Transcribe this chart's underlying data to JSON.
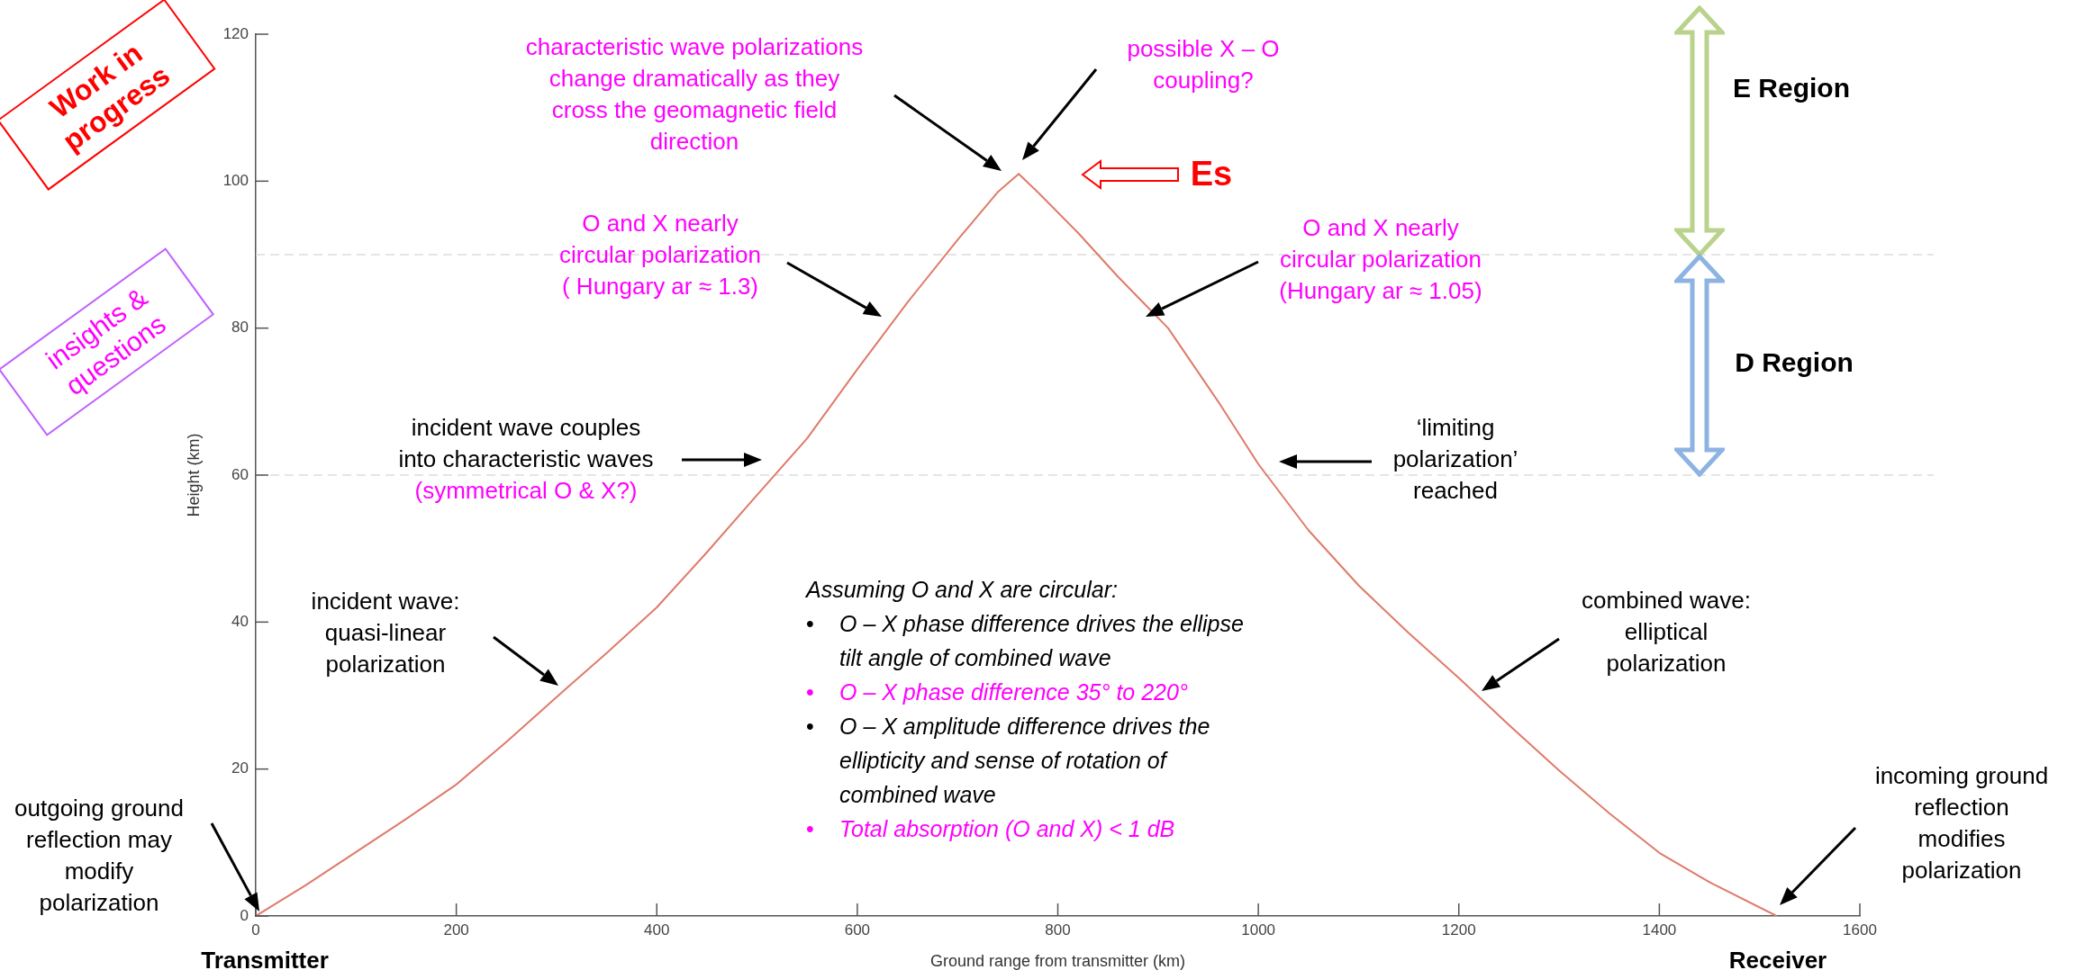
{
  "chart_data": {
    "type": "line",
    "xlabel": "Ground range from transmitter (km)",
    "ylabel": "Height (km)",
    "xlim": [
      0,
      1600
    ],
    "ylim": [
      0,
      120
    ],
    "xticks": [
      0,
      200,
      400,
      600,
      800,
      1000,
      1200,
      1400,
      1600
    ],
    "yticks": [
      0,
      20,
      40,
      60,
      80,
      100,
      120
    ],
    "marker": "none",
    "line_style": "solid",
    "x": [
      0,
      50,
      100,
      150,
      200,
      250,
      300,
      350,
      400,
      450,
      500,
      550,
      600,
      650,
      700,
      740,
      761,
      780,
      820,
      860,
      910,
      960,
      1000,
      1050,
      1100,
      1150,
      1200,
      1250,
      1300,
      1350,
      1400,
      1450,
      1517
    ],
    "series": [
      {
        "color": "#e07a6a",
        "values": [
          0,
          4.2,
          8.7,
          13.2,
          17.9,
          23.7,
          29.8,
          35.8,
          42,
          49.5,
          57.3,
          65,
          74.4,
          83.5,
          92,
          98.5,
          101,
          98.5,
          93,
          87,
          80,
          70,
          61.5,
          52.5,
          45,
          38.5,
          32.4,
          26,
          19.8,
          14,
          8.6,
          4.6,
          0
        ]
      }
    ],
    "ref_lines": [
      {
        "axis": "y",
        "value": 60,
        "color": "#dddddd",
        "line_style": "dashed"
      },
      {
        "axis": "y",
        "value": 90,
        "color": "#dddddd",
        "line_style": "dashed"
      }
    ],
    "annotations": [
      "characteristic wave polarizations\nchange dramatically as they\ncross the geomagnetic field\ndirection",
      "possible X – O\ncoupling?",
      "O and X nearly\ncircular polarization\n( Hungary ar ≈ 1.3)",
      "O and X nearly\ncircular polarization\n(Hungary ar ≈ 1.05)",
      "incident wave couples\ninto characteristic waves",
      "(symmetrical O & X?)",
      "‘limiting\npolarization’\nreached",
      "incident wave:\nquasi-linear\npolarization",
      "combined wave:\nelliptical\npolarization",
      "outgoing ground\nreflection may\nmodify\npolarization",
      "incoming ground\nreflection\nmodifies\npolarization",
      "Es",
      "E Region",
      "D Region",
      "Transmitter",
      "Receiver",
      "Assuming O and X are circular:",
      "• O – X phase difference drives the ellipse tilt angle of combined wave",
      "• O – X phase difference 35° to 220°",
      "• O – X amplitude difference drives the ellipticity and sense of rotation of combined wave",
      "• Total absorption (O and X) < 1 dB",
      "Work in progress",
      "insights & questions"
    ]
  }
}
